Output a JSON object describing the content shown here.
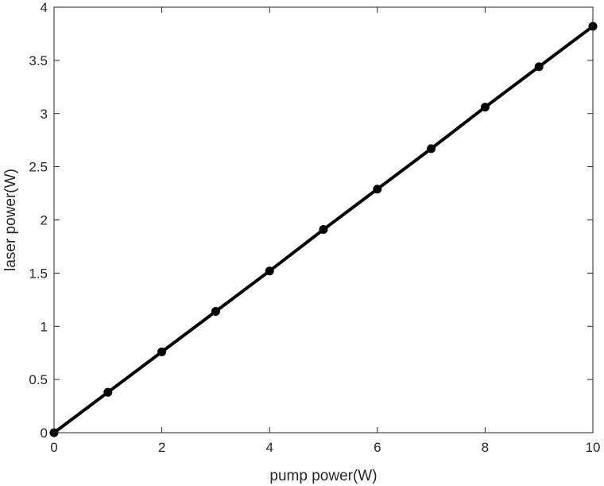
{
  "chart_data": {
    "type": "line",
    "title": "",
    "xlabel": "pump power(W)",
    "ylabel": "laser power(W)",
    "xlim": [
      0,
      10
    ],
    "ylim": [
      0,
      4
    ],
    "xticks": [
      0,
      2,
      4,
      6,
      8,
      10
    ],
    "yticks": [
      0,
      0.5,
      1,
      1.5,
      2,
      2.5,
      3,
      3.5,
      4
    ],
    "grid": false,
    "box": true,
    "x": [
      0,
      1,
      2,
      3,
      4,
      5,
      6,
      7,
      8,
      9,
      10
    ],
    "series": [
      {
        "values": [
          0,
          0.38,
          0.76,
          1.14,
          1.52,
          1.91,
          2.29,
          2.67,
          3.06,
          3.44,
          3.82
        ],
        "color": "#000000",
        "marker": "circle",
        "line_style": "solid"
      }
    ]
  }
}
